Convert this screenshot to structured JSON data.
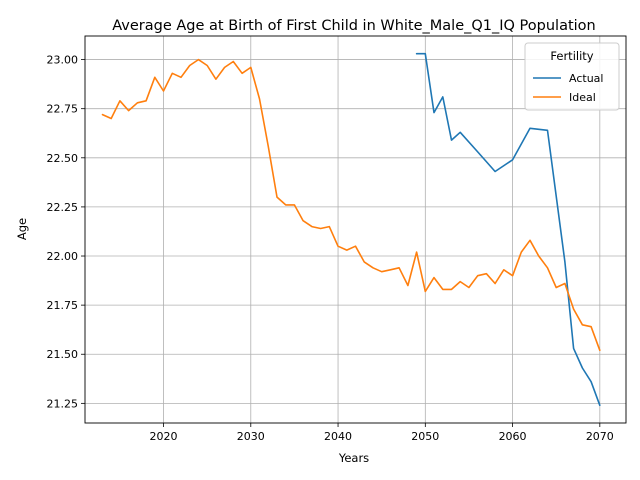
{
  "chart_data": {
    "type": "line",
    "title": "Average Age at Birth of First Child in White_Male_Q1_IQ Population",
    "xlabel": "Years",
    "ylabel": "Age",
    "xlim": [
      2011,
      2073
    ],
    "ylim": [
      21.15,
      23.12
    ],
    "xticks": [
      2020,
      2030,
      2040,
      2050,
      2060,
      2070
    ],
    "yticks": [
      21.25,
      21.5,
      21.75,
      22.0,
      22.25,
      22.5,
      22.75,
      23.0
    ],
    "grid": true,
    "legend": {
      "title": "Fertility",
      "placement": "top-right"
    },
    "series": [
      {
        "name": "Actual",
        "color": "#1f77b4",
        "x": [
          2049,
          2050,
          2051,
          2052,
          2053,
          2054,
          2056,
          2058,
          2060,
          2062,
          2064,
          2066,
          2067,
          2068,
          2069,
          2070
        ],
        "y": [
          23.03,
          23.03,
          22.73,
          22.81,
          22.59,
          22.63,
          22.53,
          22.43,
          22.49,
          22.65,
          22.64,
          21.97,
          21.53,
          21.43,
          21.36,
          21.24
        ]
      },
      {
        "name": "Ideal",
        "color": "#ff7f0e",
        "x": [
          2013,
          2014,
          2015,
          2016,
          2017,
          2018,
          2019,
          2020,
          2021,
          2022,
          2023,
          2024,
          2025,
          2026,
          2027,
          2028,
          2029,
          2030,
          2031,
          2032,
          2033,
          2034,
          2035,
          2036,
          2037,
          2038,
          2039,
          2040,
          2041,
          2042,
          2043,
          2044,
          2045,
          2046,
          2047,
          2048,
          2049,
          2050,
          2051,
          2052,
          2053,
          2054,
          2055,
          2056,
          2057,
          2058,
          2059,
          2060,
          2061,
          2062,
          2063,
          2064,
          2065,
          2066,
          2067,
          2068,
          2069,
          2070
        ],
        "y": [
          22.72,
          22.7,
          22.79,
          22.74,
          22.78,
          22.79,
          22.91,
          22.84,
          22.93,
          22.91,
          22.97,
          23.0,
          22.97,
          22.9,
          22.96,
          22.99,
          22.93,
          22.96,
          22.8,
          22.56,
          22.3,
          22.26,
          22.26,
          22.18,
          22.15,
          22.14,
          22.15,
          22.05,
          22.03,
          22.05,
          21.97,
          21.94,
          21.92,
          21.93,
          21.94,
          21.85,
          22.02,
          21.82,
          21.89,
          21.83,
          21.83,
          21.87,
          21.84,
          21.9,
          21.91,
          21.86,
          21.93,
          21.9,
          22.02,
          22.08,
          22.0,
          21.94,
          21.84,
          21.86,
          21.73,
          21.65,
          21.64,
          21.52
        ]
      }
    ]
  }
}
